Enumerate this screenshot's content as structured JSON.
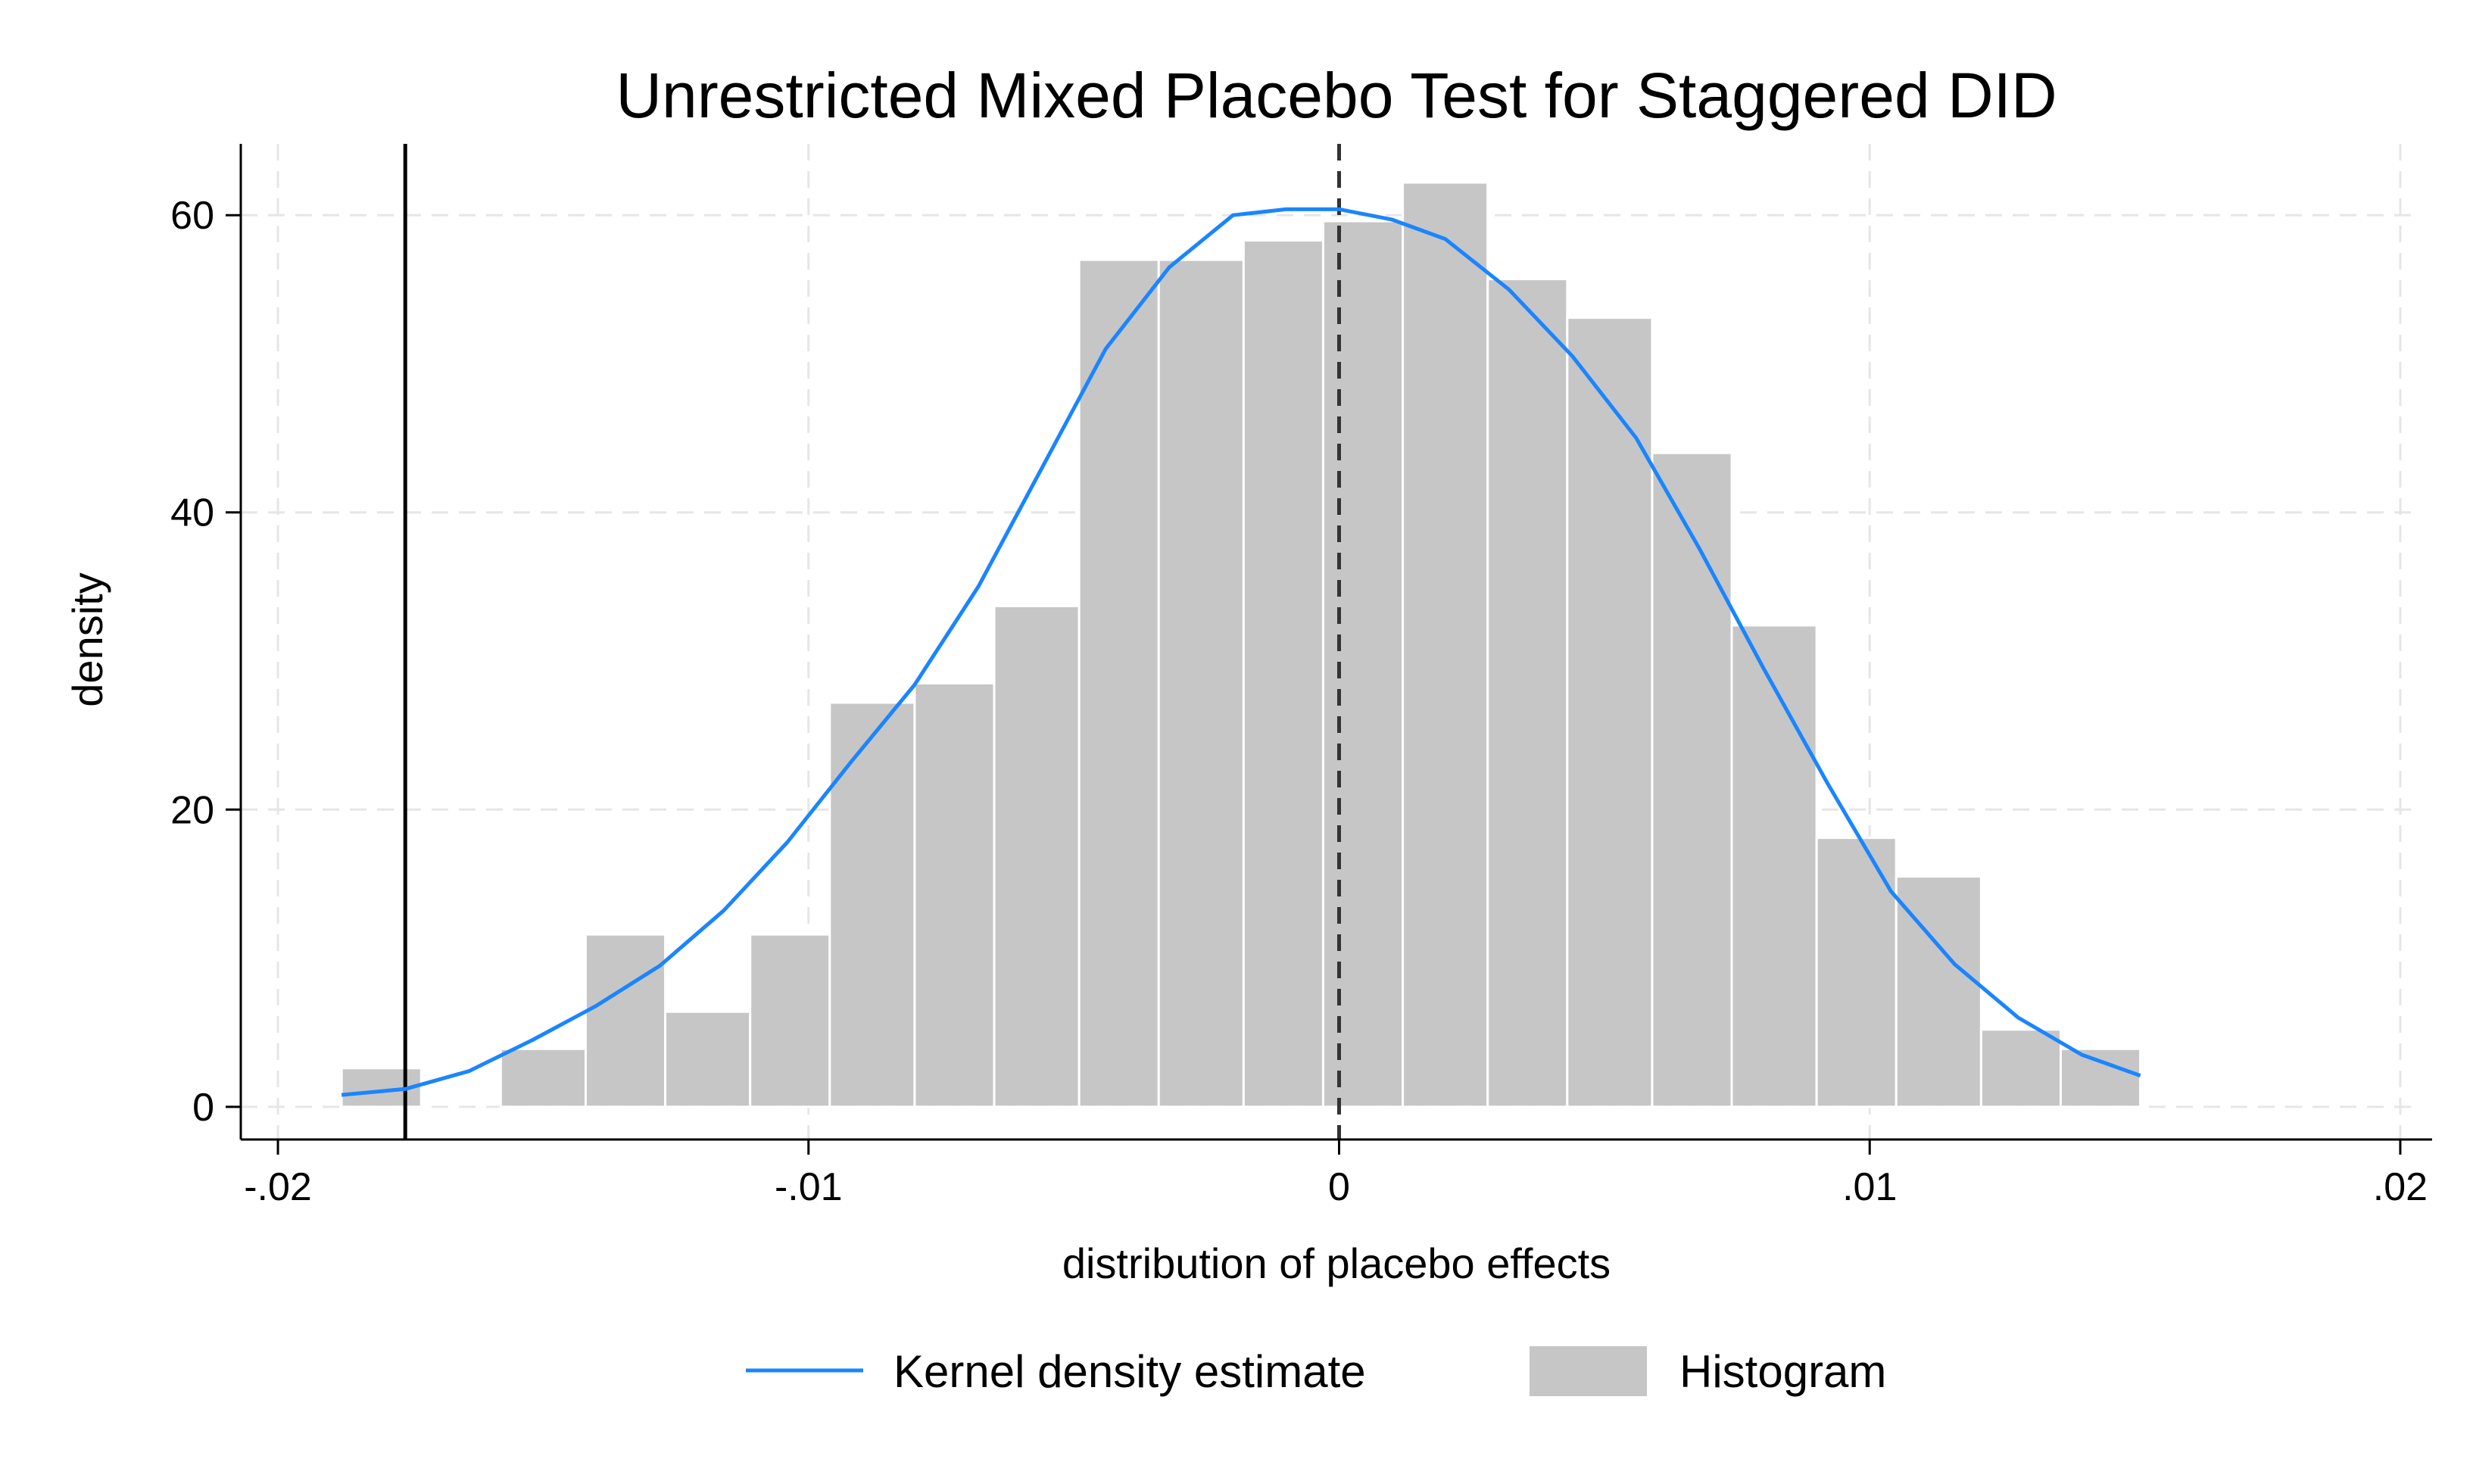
{
  "chart_data": {
    "type": "bar",
    "title": "Unrestricted Mixed Placebo Test for Staggered DID",
    "xlabel": "distribution of placebo effects",
    "ylabel": "density",
    "xlim": [
      -0.0207,
      0.0206
    ],
    "ylim": [
      -2.2,
      64.8
    ],
    "x_ticks": [
      {
        "value": -0.02,
        "label": "-.02"
      },
      {
        "value": -0.01,
        "label": "-.01"
      },
      {
        "value": 0,
        "label": "0"
      },
      {
        "value": 0.01,
        "label": ".01"
      },
      {
        "value": 0.02,
        "label": ".02"
      }
    ],
    "y_ticks": [
      {
        "value": 0,
        "label": "0"
      },
      {
        "value": 20,
        "label": "20"
      },
      {
        "value": 40,
        "label": "40"
      },
      {
        "value": 60,
        "label": "60"
      }
    ],
    "grid": true,
    "legend_position": "bottom",
    "histogram": {
      "name": "Histogram",
      "color": "#c6c6c6",
      "bins": [
        {
          "x0": -0.0188,
          "x1": -0.0173,
          "density": 2.6
        },
        {
          "x0": -0.0173,
          "x1": -0.0158,
          "density": 0
        },
        {
          "x0": -0.0158,
          "x1": -0.0142,
          "density": 3.9
        },
        {
          "x0": -0.0142,
          "x1": -0.0127,
          "density": 11.6
        },
        {
          "x0": -0.0127,
          "x1": -0.0111,
          "density": 6.4
        },
        {
          "x0": -0.0111,
          "x1": -0.0096,
          "density": 11.6
        },
        {
          "x0": -0.0096,
          "x1": -0.008,
          "density": 27.2
        },
        {
          "x0": -0.008,
          "x1": -0.0065,
          "density": 28.5
        },
        {
          "x0": -0.0065,
          "x1": -0.0049,
          "density": 33.7
        },
        {
          "x0": -0.0049,
          "x1": -0.0034,
          "density": 57.0
        },
        {
          "x0": -0.0034,
          "x1": -0.0018,
          "density": 57.0
        },
        {
          "x0": -0.0018,
          "x1": -0.0003,
          "density": 58.3
        },
        {
          "x0": -0.0003,
          "x1": 0.0012,
          "density": 59.6
        },
        {
          "x0": 0.0012,
          "x1": 0.0028,
          "density": 62.2
        },
        {
          "x0": 0.0028,
          "x1": 0.0043,
          "density": 55.7
        },
        {
          "x0": 0.0043,
          "x1": 0.0059,
          "density": 53.1
        },
        {
          "x0": 0.0059,
          "x1": 0.0074,
          "density": 44.0
        },
        {
          "x0": 0.0074,
          "x1": 0.009,
          "density": 32.4
        },
        {
          "x0": 0.009,
          "x1": 0.0105,
          "density": 18.1
        },
        {
          "x0": 0.0105,
          "x1": 0.0121,
          "density": 15.5
        },
        {
          "x0": 0.0121,
          "x1": 0.0136,
          "density": 5.2
        },
        {
          "x0": 0.0136,
          "x1": 0.0151,
          "density": 3.9
        }
      ]
    },
    "kde": {
      "name": "Kernel density estimate",
      "color": "#1a85ff",
      "x": [
        -0.0188,
        -0.0176,
        -0.0164,
        -0.0152,
        -0.014,
        -0.0128,
        -0.0116,
        -0.0104,
        -0.0092,
        -0.008,
        -0.0068,
        -0.0056,
        -0.0044,
        -0.0032,
        -0.002,
        -0.001,
        0.0,
        0.001,
        0.002,
        0.0032,
        0.0044,
        0.0056,
        0.0068,
        0.008,
        0.0092,
        0.0104,
        0.0116,
        0.0128,
        0.014,
        0.0151
      ],
      "y": [
        0.8,
        1.2,
        2.4,
        4.5,
        6.8,
        9.5,
        13.2,
        17.8,
        23.2,
        28.4,
        35.0,
        43.0,
        51.0,
        56.5,
        60.0,
        60.4,
        60.4,
        59.7,
        58.4,
        55.0,
        50.5,
        45.0,
        37.5,
        29.5,
        21.8,
        14.5,
        9.6,
        6.0,
        3.5,
        2.1
      ]
    },
    "reference_lines": [
      {
        "x": -0.0176,
        "style": "solid",
        "color": "#000000"
      },
      {
        "x": 0,
        "style": "dashed",
        "color": "#333333"
      }
    ]
  }
}
